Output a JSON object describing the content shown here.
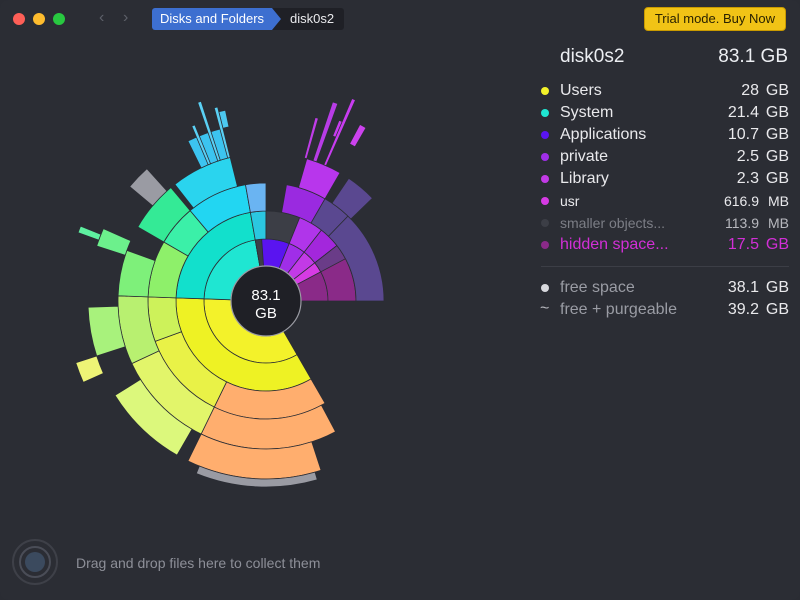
{
  "toolbar": {
    "back_glyph": "‹",
    "forward_glyph": "›",
    "breadcrumb": [
      "Disks and Folders",
      "disk0s2"
    ],
    "buy_label": "Trial mode. Buy Now"
  },
  "center": {
    "size": "83.1",
    "unit": "GB"
  },
  "disk": {
    "name": "disk0s2",
    "size": "83.1 GB"
  },
  "legend": [
    {
      "name": "Users",
      "num": "28",
      "unit": "GB",
      "color": "#f3f22a",
      "text_color": "#e9e9ec"
    },
    {
      "name": "System",
      "num": "21.4",
      "unit": "GB",
      "color": "#1fe6d2",
      "text_color": "#e9e9ec"
    },
    {
      "name": "Applications",
      "num": "10.7",
      "unit": "GB",
      "color": "#5a14f0",
      "text_color": "#e9e9ec"
    },
    {
      "name": "private",
      "num": "2.5",
      "unit": "GB",
      "color": "#a02ee8",
      "text_color": "#e9e9ec"
    },
    {
      "name": "Library",
      "num": "2.3",
      "unit": "GB",
      "color": "#c23ae6",
      "text_color": "#e9e9ec"
    },
    {
      "name": "usr",
      "num": "616.9",
      "unit": "MB",
      "color": "#d63be4",
      "text_color": "#e9e9ec",
      "small": true
    },
    {
      "name": "smaller objects...",
      "num": "113.9",
      "unit": "MB",
      "color": "#3c3e46",
      "text_color": "#7c7e86",
      "small": true
    },
    {
      "name": "hidden space...",
      "num": "17.5",
      "unit": "GB",
      "color": "#8a2a88",
      "text_color": "#d22fd6"
    }
  ],
  "free": [
    {
      "name": "free space",
      "num": "38.1",
      "unit": "GB",
      "marker": "dot"
    },
    {
      "name": "free + purgeable",
      "num": "39.2",
      "unit": "GB",
      "marker": "tilde"
    }
  ],
  "drop_hint": "Drag and drop files here to collect them"
}
